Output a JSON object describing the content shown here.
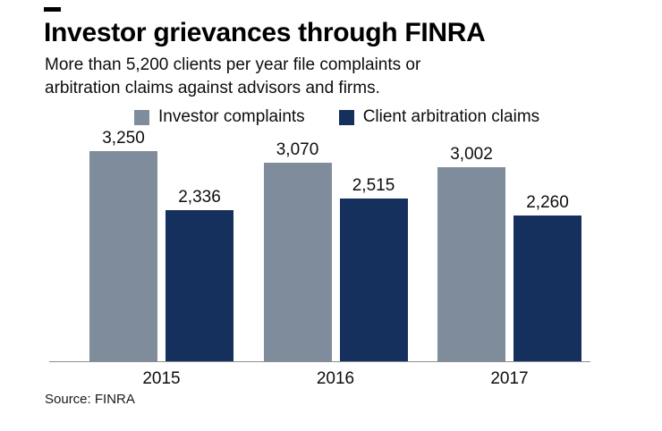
{
  "page": {
    "title": "Investor grievances through FINRA",
    "subtitle_line1": "More than 5,200 clients per year file complaints or",
    "subtitle_line2": "arbitration claims against advisors and firms.",
    "source": "Source: FINRA"
  },
  "chart_data": {
    "type": "bar",
    "title": "Investor grievances through FINRA",
    "subtitle": "More than 5,200 clients per year file complaints or arbitration claims against advisors and firms.",
    "categories": [
      "2015",
      "2016",
      "2017"
    ],
    "series": [
      {
        "name": "Investor complaints",
        "color": "#7e8c9b",
        "values": [
          3250,
          3070,
          3002
        ],
        "labels": [
          "3,250",
          "3,070",
          "3,002"
        ]
      },
      {
        "name": "Client arbitration claims",
        "color": "#16305e",
        "values": [
          2336,
          2515,
          2260
        ],
        "labels": [
          "2,336",
          "2,515",
          "2,260"
        ]
      }
    ],
    "ylim": [
      0,
      3250
    ],
    "grid": false,
    "legend_position": "top",
    "axis_line_color": "#8f8f8f",
    "source": "Source: FINRA"
  }
}
